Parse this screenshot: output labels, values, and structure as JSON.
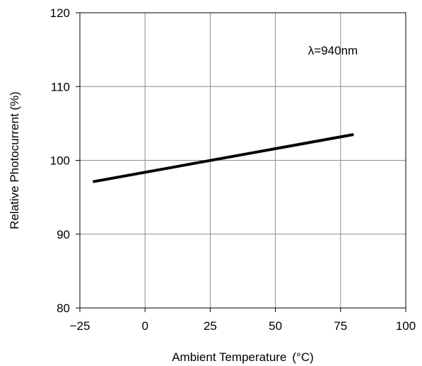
{
  "chart_data": {
    "type": "line",
    "title": "",
    "xlabel": "Ambient Temperature",
    "xlabel_unit": "(°C)",
    "ylabel": "Relative Photocurrent  (%)",
    "xlim": [
      -25,
      100
    ],
    "ylim": [
      80,
      120
    ],
    "x_ticks": [
      -25,
      0,
      25,
      50,
      75,
      100
    ],
    "x_tick_labels": [
      "−25",
      "0",
      "25",
      "50",
      "75",
      "100"
    ],
    "y_ticks": [
      80,
      90,
      100,
      110,
      120
    ],
    "y_tick_labels": [
      "80",
      "90",
      "100",
      "110",
      "120"
    ],
    "grid": true,
    "annotation": "λ=940nm",
    "series": [
      {
        "x": [
          -20,
          80
        ],
        "y": [
          97.1,
          103.5
        ],
        "color": "#000000"
      }
    ]
  }
}
